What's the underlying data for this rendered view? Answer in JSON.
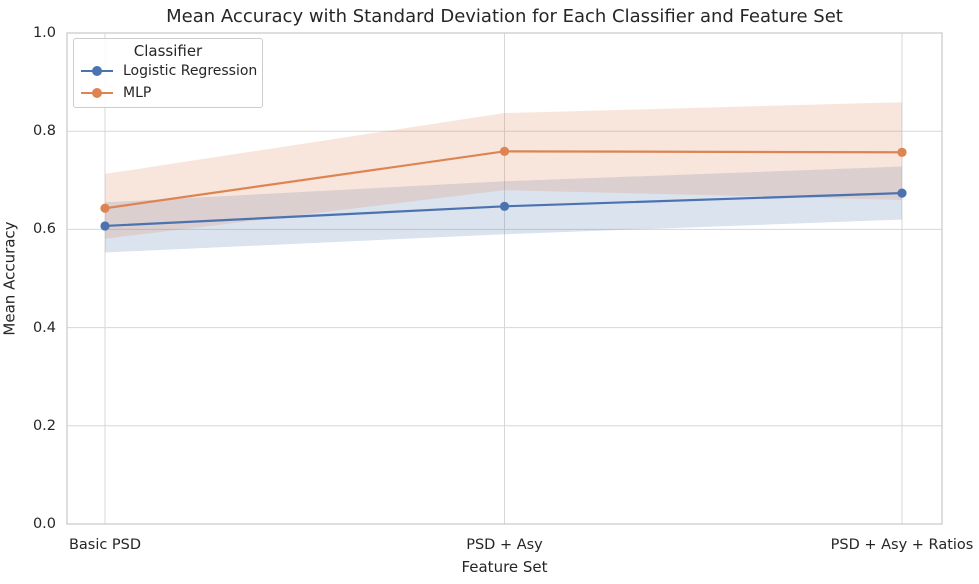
{
  "colors": {
    "blue": "#4C72B0",
    "orange": "#DD8452",
    "grid": "#d7d7d7",
    "axis_border": "#c9c9c9",
    "text": "#262626",
    "background": "#ffffff"
  },
  "legend": {
    "title": "Classifier"
  },
  "chart_data": {
    "type": "line",
    "title": "Mean Accuracy with Standard Deviation for Each Classifier and Feature Set",
    "xlabel": "Feature Set",
    "ylabel": "Mean Accuracy",
    "categories": [
      "Basic PSD",
      "PSD + Asy",
      "PSD + Asy + Ratios"
    ],
    "ylim": [
      0.0,
      1.0
    ],
    "ytick_values": [
      0.0,
      0.2,
      0.4,
      0.6,
      0.8,
      1.0
    ],
    "ytick_labels": [
      "0.0",
      "0.2",
      "0.4",
      "0.6",
      "0.8",
      "1.0"
    ],
    "grid": true,
    "legend_position": "upper left",
    "band_meaning": "standard deviation",
    "series": [
      {
        "name": "Logistic Regression",
        "color": "#4C72B0",
        "mean": [
          0.607,
          0.647,
          0.674
        ],
        "band_lower": [
          0.553,
          0.59,
          0.62
        ],
        "band_upper": [
          0.655,
          0.698,
          0.728
        ]
      },
      {
        "name": "MLP",
        "color": "#DD8452",
        "mean": [
          0.643,
          0.759,
          0.757
        ],
        "band_lower": [
          0.581,
          0.68,
          0.66
        ],
        "band_upper": [
          0.713,
          0.837,
          0.859
        ]
      }
    ]
  }
}
